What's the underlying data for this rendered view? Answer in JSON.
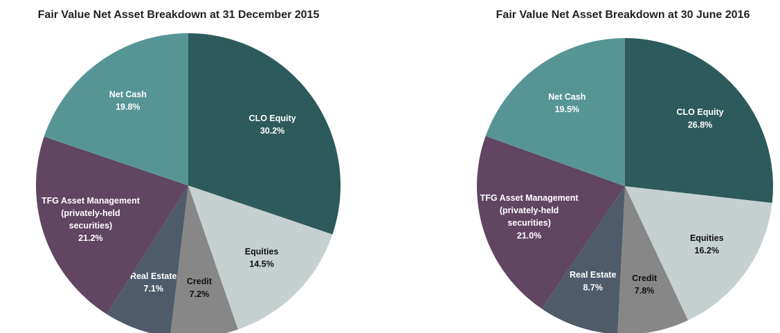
{
  "chart_data": [
    {
      "type": "pie",
      "title": "Fair Value Net Asset Breakdown at 31 December 2015",
      "categories": [
        "CLO Equity",
        "Equities",
        "Credit",
        "Real Estate",
        "TFG Asset Management (privately-held securities)",
        "Net Cash"
      ],
      "values": [
        30.2,
        14.5,
        7.2,
        7.1,
        21.2,
        19.8
      ],
      "value_labels": [
        "30.2%",
        "14.5%",
        "7.2%",
        "7.1%",
        "21.2%",
        "19.8%"
      ],
      "colors": [
        "#2d5a5a",
        "#c6d0d0",
        "#878787",
        "#4f5b69",
        "#604661",
        "#579595"
      ]
    },
    {
      "type": "pie",
      "title": "Fair Value Net Asset Breakdown at 30 June 2016",
      "categories": [
        "CLO Equity",
        "Equities",
        "Credit",
        "Real Estate",
        "TFG Asset Management (privately-held securities)",
        "Net Cash"
      ],
      "values": [
        26.8,
        16.2,
        7.8,
        8.7,
        21.0,
        19.5
      ],
      "value_labels": [
        "26.8%",
        "16.2%",
        "7.8%",
        "8.7%",
        "21.0%",
        "19.5%"
      ],
      "colors": [
        "#2d5a5a",
        "#c6d0d0",
        "#878787",
        "#4f5b69",
        "#604661",
        "#579595"
      ]
    }
  ]
}
